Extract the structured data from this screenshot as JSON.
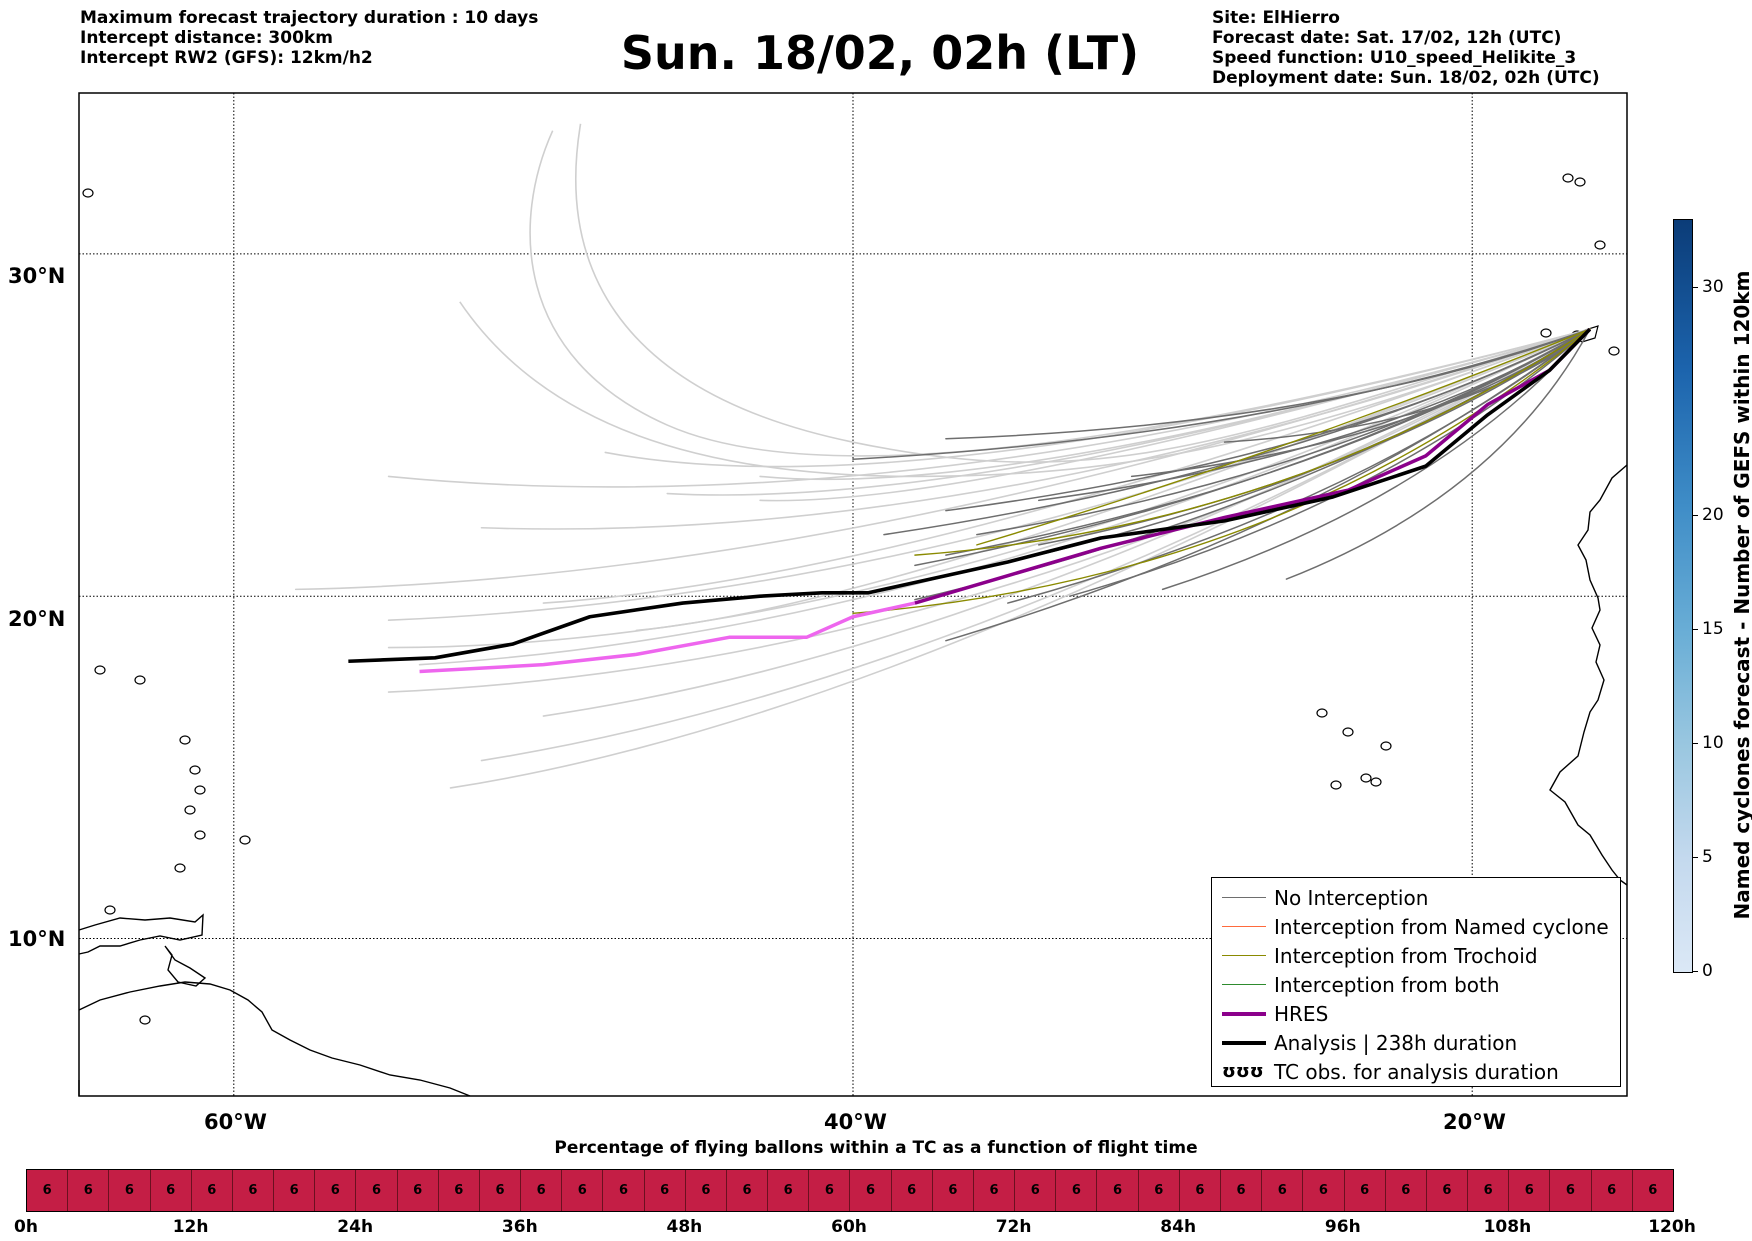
{
  "header": {
    "left_lines": [
      "Maximum forecast trajectory duration : 10 days",
      "Intercept distance: 300km",
      "Intercept RW2 (GFS):  12km/h2"
    ],
    "title": "Sun. 18/02, 02h (LT)",
    "right_lines": [
      "Site: ElHierro",
      "Forecast date: Sat. 17/02, 12h (UTC)",
      "Speed function: U10_speed_Helikite_3",
      "Deployment date: Sun. 18/02, 02h (UTC)"
    ]
  },
  "map": {
    "lon_min": -65,
    "lon_max": -15,
    "lat_min": 5.4,
    "lat_max": 34.7,
    "lat_labels": [
      {
        "lat": 30,
        "text": "30°N"
      },
      {
        "lat": 20,
        "text": "20°N"
      },
      {
        "lat": 10,
        "text": "10°N"
      }
    ],
    "lon_labels": [
      {
        "lon": -60,
        "text": "60°W"
      },
      {
        "lon": -40,
        "text": "40°W"
      },
      {
        "lon": -20,
        "text": "20°W"
      }
    ],
    "colors": {
      "no_interception": "#6e6e6e",
      "early_forecast": "#cfcfcf",
      "named_cyclone": "#ff6a3d",
      "trochoid": "#8a8a00",
      "both": "#2e8b2e",
      "hres": "#8b008b",
      "hres_early": "#ee66ee",
      "analysis": "#000000"
    }
  },
  "legend": {
    "items": [
      {
        "label": "No Interception",
        "color": "#6e6e6e",
        "width": 1.2
      },
      {
        "label": "Interception from Named cyclone",
        "color": "#ff6a3d",
        "width": 1.2
      },
      {
        "label": "Interception from Trochoid",
        "color": "#8a8a00",
        "width": 1.2
      },
      {
        "label": "Interception from both",
        "color": "#2e8b2e",
        "width": 1.2
      },
      {
        "label": "HRES",
        "color": "#8b008b",
        "width": 4
      },
      {
        "label": "Analysis | 238h duration",
        "color": "#000000",
        "width": 4
      },
      {
        "label": "TC obs. for analysis duration",
        "symbol": "ʊʊʊ"
      }
    ]
  },
  "colorbar": {
    "title": "Named cyclones forecast - Number of GEFS within 120km",
    "min": 0,
    "max": 33,
    "ticks": [
      "0",
      "5",
      "10",
      "15",
      "20",
      "30"
    ]
  },
  "percentage_bar": {
    "title": "Percentage of flying ballons within a TC as a function of flight time",
    "values": [
      "6",
      "6",
      "6",
      "6",
      "6",
      "6",
      "6",
      "6",
      "6",
      "6",
      "6",
      "6",
      "6",
      "6",
      "6",
      "6",
      "6",
      "6",
      "6",
      "6",
      "6",
      "6",
      "6",
      "6",
      "6",
      "6",
      "6",
      "6",
      "6",
      "6",
      "6",
      "6",
      "6",
      "6",
      "6",
      "6",
      "6",
      "6",
      "6",
      "6"
    ],
    "hour_labels": [
      "0h",
      "12h",
      "24h",
      "36h",
      "48h",
      "60h",
      "72h",
      "84h",
      "96h",
      "108h",
      "120h"
    ],
    "color": "#c41e45"
  }
}
